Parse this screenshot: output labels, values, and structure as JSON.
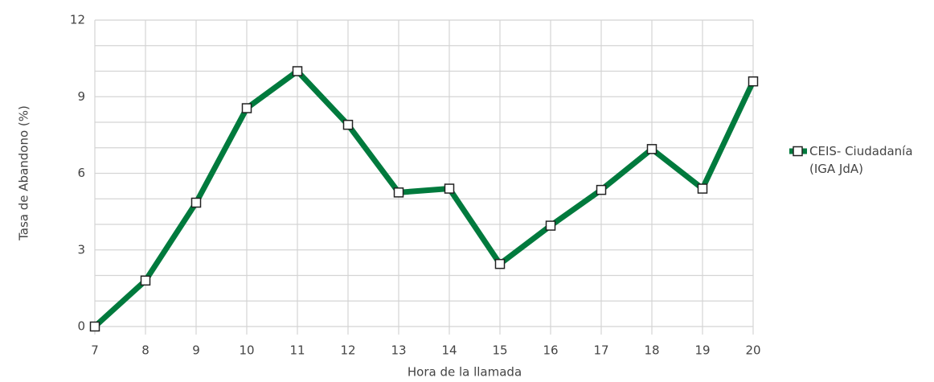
{
  "chart_data": {
    "type": "line",
    "xlabel": "Hora de la llamada",
    "ylabel": "Tasa de Abandono (%)",
    "x": [
      7,
      8,
      9,
      10,
      11,
      12,
      13,
      14,
      15,
      16,
      17,
      18,
      19,
      20
    ],
    "series": [
      {
        "name": "CEIS- Ciudadanía (IGA JdA)",
        "color": "#007a3d",
        "values": [
          0,
          1.8,
          4.85,
          8.55,
          10,
          7.9,
          5.25,
          5.4,
          2.45,
          3.95,
          5.35,
          6.95,
          5.4,
          9.6
        ]
      }
    ],
    "xlim": [
      7,
      20
    ],
    "xticks": [
      7,
      8,
      9,
      10,
      11,
      12,
      13,
      14,
      15,
      16,
      17,
      18,
      19,
      20
    ],
    "ylim": [
      0,
      12
    ],
    "yticks": [
      0,
      3,
      6,
      9,
      12
    ],
    "yminor": [
      1,
      2,
      4,
      5,
      7,
      8,
      10,
      11
    ],
    "grid": true,
    "legend": "right"
  }
}
